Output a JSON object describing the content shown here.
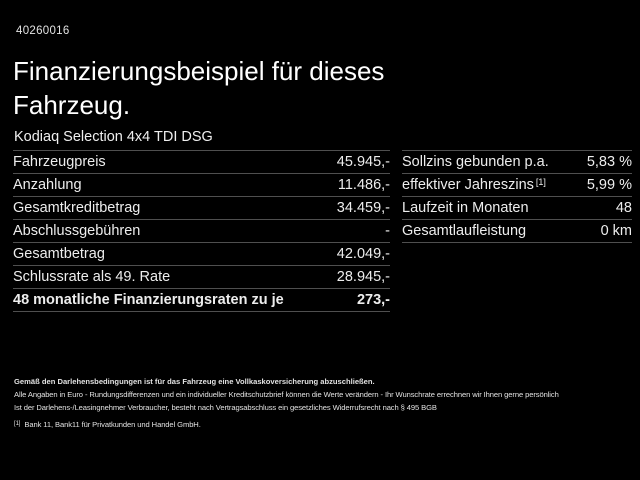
{
  "header": {
    "id_number": "40260016",
    "title_lines": [
      "Finanzierungsbeispiel für dieses",
      "Fahrzeug."
    ],
    "vehicle": "Kodiaq Selection 4x4 TDI DSG"
  },
  "tables": {
    "financing": {
      "rows": [
        {
          "label": "Fahrzeugpreis",
          "value": "45.945,-"
        },
        {
          "label": "Anzahlung",
          "value": "11.486,-"
        },
        {
          "label": "Gesamtkreditbetrag",
          "value": "34.459,-"
        },
        {
          "label": "Abschlussgebühren",
          "value": "-"
        },
        {
          "label": "Gesamtbetrag",
          "value": "42.049,-"
        },
        {
          "label": "Schlussrate als 49. Rate",
          "value": "28.945,-"
        },
        {
          "label": "48 monatliche Finanzierungsraten zu je",
          "value": "273,-"
        }
      ]
    },
    "conditions": {
      "rows": [
        {
          "label": "Sollzins gebunden p.a.",
          "sup": "",
          "value": "5,83 %"
        },
        {
          "label": "effektiver Jahreszins",
          "sup": "[1]",
          "value": "5,99 %"
        },
        {
          "label": "Laufzeit in Monaten",
          "sup": "",
          "value": "48"
        },
        {
          "label": "Gesamtlaufleistung",
          "sup": "",
          "value": "0 km"
        }
      ]
    }
  },
  "fineprint": {
    "line1": "Gemäß den Darlehensbedingungen ist für das Fahrzeug eine Vollkaskoversicherung abzuschließen.",
    "line2": "Alle Angaben in Euro - Rundungsdifferenzen und ein individueller Kreditschutzbrief können die Werte verändern - Ihr Wunschrate errechnen wir Ihnen gerne persönlich",
    "line3": "Ist der Darlehens-/Leasingnehmer Verbraucher, besteht nach Vertragsabschluss ein gesetzliches Widerrufsrecht nach § 495 BGB",
    "footnote_marker": "[1]",
    "footnote_text": "Bank 11, Bank11 für Privatkunden und Handel GmbH."
  },
  "colors": {
    "background": "#000000",
    "text_primary": "#f2f2f2",
    "separator": "#4f4f4f"
  }
}
